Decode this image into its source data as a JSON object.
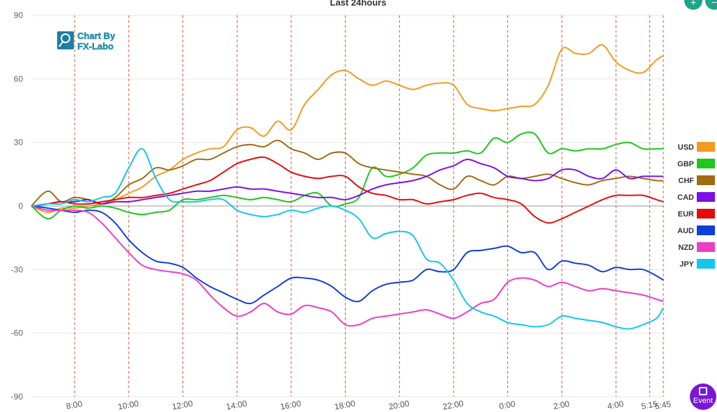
{
  "chart_data": {
    "type": "line",
    "title": "Last 24hours",
    "ylim": [
      -90,
      90
    ],
    "yticks": [
      90,
      60,
      30,
      0,
      -30,
      -60,
      -90
    ],
    "xlim": [
      6.4,
      29.75
    ],
    "xticks": [
      {
        "x": 8,
        "label": "8:00"
      },
      {
        "x": 10,
        "label": "10:00"
      },
      {
        "x": 12,
        "label": "12:00"
      },
      {
        "x": 14,
        "label": "14:00"
      },
      {
        "x": 16,
        "label": "16:00"
      },
      {
        "x": 18,
        "label": "18:00"
      },
      {
        "x": 20,
        "label": "20:00"
      },
      {
        "x": 22,
        "label": "22:00"
      },
      {
        "x": 24,
        "label": "0:00"
      },
      {
        "x": 26,
        "label": "2:00"
      },
      {
        "x": 28,
        "label": "4:00"
      },
      {
        "x": 29.25,
        "label": "5:15"
      },
      {
        "x": 29.75,
        "label": "5:45"
      }
    ],
    "vlines": [
      8,
      10,
      12,
      14,
      16,
      18,
      20,
      22,
      24,
      26,
      28,
      29.25,
      29.75
    ],
    "legend_position": "right",
    "x": [
      6.4,
      7,
      7.5,
      8,
      8.5,
      9,
      9.5,
      10,
      10.5,
      11,
      11.5,
      12,
      12.5,
      13,
      13.5,
      14,
      14.5,
      15,
      15.5,
      16,
      16.5,
      17,
      17.5,
      18,
      18.5,
      19,
      19.5,
      20,
      20.5,
      21,
      21.5,
      22,
      22.5,
      23,
      23.5,
      24,
      24.5,
      25,
      25.5,
      26,
      26.5,
      27,
      27.5,
      28,
      28.5,
      29,
      29.5,
      29.75
    ],
    "series": [
      {
        "name": "USD",
        "color": "#f59a1c",
        "values": [
          0,
          -3,
          -1,
          -1,
          0,
          1,
          3,
          6,
          9,
          14,
          17,
          22,
          25,
          27,
          28,
          36,
          37,
          33,
          40,
          36,
          48,
          55,
          62,
          64,
          60,
          57,
          59,
          57,
          55,
          57,
          58,
          57,
          48,
          46,
          45,
          46,
          47,
          48,
          57,
          74,
          72,
          72,
          76,
          68,
          64,
          63,
          69,
          71
        ]
      },
      {
        "name": "GBP",
        "color": "#1ec71e",
        "values": [
          0,
          -6,
          -2,
          0,
          -1,
          0,
          -1,
          -3,
          -4,
          -3,
          -2,
          3,
          3,
          4,
          5,
          4,
          3,
          4,
          3,
          2,
          5,
          6,
          0,
          1,
          4,
          18,
          14,
          15,
          18,
          24,
          25,
          25,
          26,
          25,
          32,
          30,
          34,
          34,
          25,
          27,
          26,
          27,
          27,
          29,
          30,
          27,
          27,
          27
        ]
      },
      {
        "name": "CHF",
        "color": "#a16b12",
        "values": [
          0,
          7,
          2,
          4,
          3,
          1,
          4,
          10,
          13,
          18,
          17,
          19,
          22,
          22,
          25,
          28,
          29,
          28,
          31,
          27,
          25,
          22,
          25,
          25,
          20,
          18,
          17,
          16,
          15,
          14,
          10,
          8,
          14,
          12,
          10,
          14,
          13,
          14,
          15,
          13,
          11,
          10,
          12,
          13,
          14,
          13,
          12,
          12
        ]
      },
      {
        "name": "CAD",
        "color": "#7b10e8",
        "values": [
          0,
          1,
          2,
          2,
          3,
          1,
          2,
          2,
          3,
          4,
          5,
          6,
          7,
          7,
          8,
          9,
          8,
          8,
          7,
          6,
          5,
          4,
          4,
          3,
          5,
          8,
          10,
          11,
          12,
          14,
          17,
          19,
          22,
          20,
          18,
          14,
          13,
          12,
          13,
          17,
          17,
          14,
          13,
          17,
          13,
          14,
          14,
          14
        ]
      },
      {
        "name": "EUR",
        "color": "#e60c0c",
        "values": [
          0,
          1,
          2,
          1,
          1,
          2,
          3,
          4,
          4,
          5,
          6,
          8,
          10,
          12,
          16,
          20,
          22,
          23,
          20,
          16,
          14,
          13,
          14,
          14,
          9,
          6,
          5,
          3,
          3,
          1,
          2,
          3,
          5,
          6,
          4,
          3,
          1,
          -5,
          -8,
          -6,
          -3,
          0,
          3,
          5,
          5,
          5,
          3,
          2
        ]
      },
      {
        "name": "AUD",
        "color": "#0f3ed8",
        "values": [
          0,
          -1,
          -2,
          -3,
          -2,
          -3,
          -8,
          -16,
          -22,
          -26,
          -27,
          -29,
          -34,
          -38,
          -41,
          -44,
          -46,
          -42,
          -38,
          -34,
          -34,
          -35,
          -38,
          -43,
          -45,
          -40,
          -37,
          -36,
          -35,
          -30,
          -31,
          -30,
          -22,
          -21,
          -20,
          -19,
          -22,
          -22,
          -30,
          -26,
          -27,
          -28,
          -31,
          -29,
          -30,
          -30,
          -33,
          -35
        ]
      },
      {
        "name": "NZD",
        "color": "#ee3cc3",
        "values": [
          0,
          -2,
          -2,
          -2,
          -3,
          -8,
          -15,
          -22,
          -28,
          -30,
          -31,
          -32,
          -35,
          -42,
          -48,
          -52,
          -50,
          -46,
          -50,
          -51,
          -47,
          -48,
          -50,
          -56,
          -56,
          -53,
          -52,
          -51,
          -50,
          -49,
          -51,
          -53,
          -50,
          -46,
          -44,
          -36,
          -34,
          -35,
          -38,
          -36,
          -38,
          -40,
          -39,
          -40,
          -41,
          -42,
          -44,
          -45
        ]
      },
      {
        "name": "JPY",
        "color": "#12c6ee",
        "values": [
          0,
          1,
          1,
          3,
          2,
          4,
          6,
          18,
          27,
          13,
          3,
          2,
          2,
          3,
          3,
          -2,
          -4,
          -5,
          -4,
          -2,
          -3,
          -1,
          0,
          -2,
          -6,
          -15,
          -13,
          -12,
          -14,
          -25,
          -27,
          -35,
          -46,
          -50,
          -52,
          -55,
          -56,
          -57,
          -56,
          -52,
          -53,
          -54,
          -55,
          -57,
          -58,
          -56,
          -53,
          -48
        ]
      }
    ]
  },
  "logo": {
    "line1": "Chart By",
    "line2": "FX-Labo"
  },
  "buttons": {
    "event_label": "Event"
  }
}
